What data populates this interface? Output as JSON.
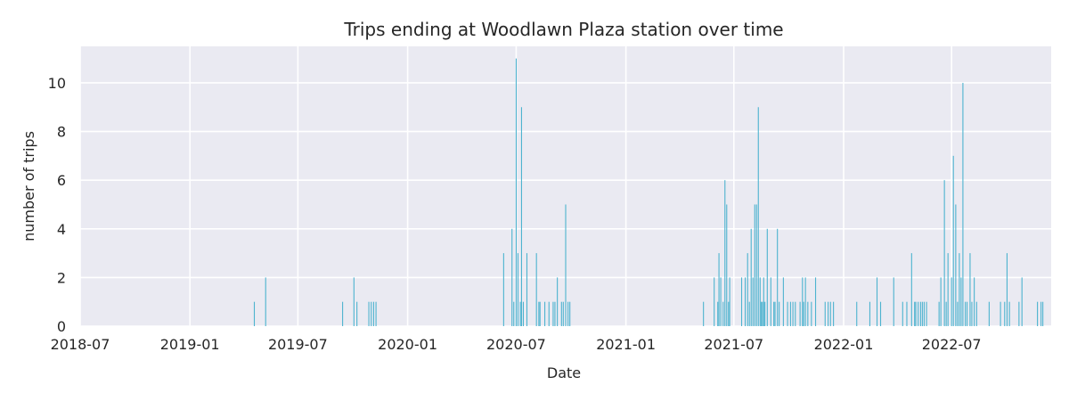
{
  "chart_data": {
    "type": "bar",
    "title": "Trips ending at Woodlawn Plaza station over time",
    "xlabel": "Date",
    "ylabel": "number of trips",
    "xlim": [
      "2018-07-01",
      "2022-12-15"
    ],
    "ylim": [
      0,
      11.5
    ],
    "x_ticks": [
      "2018-07",
      "2019-01",
      "2019-07",
      "2020-01",
      "2020-07",
      "2021-01",
      "2021-07",
      "2022-01",
      "2022-07"
    ],
    "y_ticks": [
      0,
      2,
      4,
      6,
      8,
      10
    ],
    "grid": true,
    "colors": {
      "plot_bg": "#eaeaf2",
      "grid": "#ffffff",
      "bar": "#4db3cf"
    },
    "x": [
      "2019-04-19",
      "2019-05-08",
      "2019-09-14",
      "2019-10-03",
      "2019-10-08",
      "2019-10-28",
      "2019-11-01",
      "2019-11-05",
      "2019-11-09",
      "2020-06-10",
      "2020-06-24",
      "2020-06-27",
      "2020-07-01",
      "2020-07-04",
      "2020-07-08",
      "2020-07-10",
      "2020-07-13",
      "2020-07-19",
      "2020-08-04",
      "2020-08-08",
      "2020-08-10",
      "2020-08-18",
      "2020-08-25",
      "2020-09-01",
      "2020-09-04",
      "2020-09-08",
      "2020-09-15",
      "2020-09-18",
      "2020-09-22",
      "2020-09-26",
      "2020-09-29",
      "2021-05-11",
      "2021-05-29",
      "2021-06-04",
      "2021-06-06",
      "2021-06-09",
      "2021-06-13",
      "2021-06-16",
      "2021-06-19",
      "2021-06-22",
      "2021-06-24",
      "2021-07-14",
      "2021-07-20",
      "2021-07-24",
      "2021-07-27",
      "2021-07-30",
      "2021-08-02",
      "2021-08-05",
      "2021-08-08",
      "2021-08-11",
      "2021-08-14",
      "2021-08-16",
      "2021-08-18",
      "2021-08-20",
      "2021-08-22",
      "2021-08-26",
      "2021-09-01",
      "2021-09-06",
      "2021-09-08",
      "2021-09-12",
      "2021-09-15",
      "2021-09-22",
      "2021-09-29",
      "2021-10-04",
      "2021-10-08",
      "2021-10-12",
      "2021-10-20",
      "2021-10-24",
      "2021-10-26",
      "2021-10-29",
      "2021-11-02",
      "2021-11-08",
      "2021-11-15",
      "2021-12-01",
      "2021-12-06",
      "2021-12-10",
      "2021-12-15",
      "2022-01-23",
      "2022-02-14",
      "2022-02-26",
      "2022-03-04",
      "2022-03-26",
      "2022-04-10",
      "2022-04-17",
      "2022-04-25",
      "2022-04-30",
      "2022-05-02",
      "2022-05-06",
      "2022-05-10",
      "2022-05-13",
      "2022-05-16",
      "2022-05-20",
      "2022-06-10",
      "2022-06-13",
      "2022-06-19",
      "2022-06-22",
      "2022-06-25",
      "2022-07-01",
      "2022-07-04",
      "2022-07-08",
      "2022-07-11",
      "2022-07-14",
      "2022-07-17",
      "2022-07-20",
      "2022-07-24",
      "2022-07-27",
      "2022-08-01",
      "2022-08-04",
      "2022-08-08",
      "2022-08-12",
      "2022-09-02",
      "2022-09-21",
      "2022-09-28",
      "2022-10-02",
      "2022-10-06",
      "2022-10-22",
      "2022-10-27",
      "2022-11-22",
      "2022-11-28",
      "2022-12-01"
    ],
    "values": [
      1,
      2,
      1,
      2,
      1,
      1,
      1,
      1,
      1,
      3,
      4,
      1,
      11,
      3,
      1,
      9,
      1,
      3,
      3,
      1,
      1,
      1,
      1,
      1,
      1,
      2,
      1,
      1,
      5,
      1,
      1,
      1,
      2,
      1,
      3,
      2,
      1,
      6,
      5,
      1,
      2,
      2,
      2,
      3,
      1,
      4,
      2,
      5,
      5,
      9,
      2,
      1,
      1,
      2,
      1,
      4,
      2,
      1,
      1,
      4,
      1,
      2,
      1,
      1,
      1,
      1,
      1,
      2,
      1,
      2,
      1,
      1,
      2,
      1,
      1,
      1,
      1,
      1,
      1,
      2,
      1,
      2,
      1,
      1,
      3,
      1,
      1,
      1,
      1,
      1,
      1,
      1,
      1,
      2,
      6,
      1,
      3,
      2,
      7,
      5,
      1,
      3,
      2,
      10,
      1,
      1,
      3,
      1,
      2,
      1,
      1,
      1,
      1,
      3,
      1,
      1,
      2,
      1,
      1,
      1
    ]
  }
}
